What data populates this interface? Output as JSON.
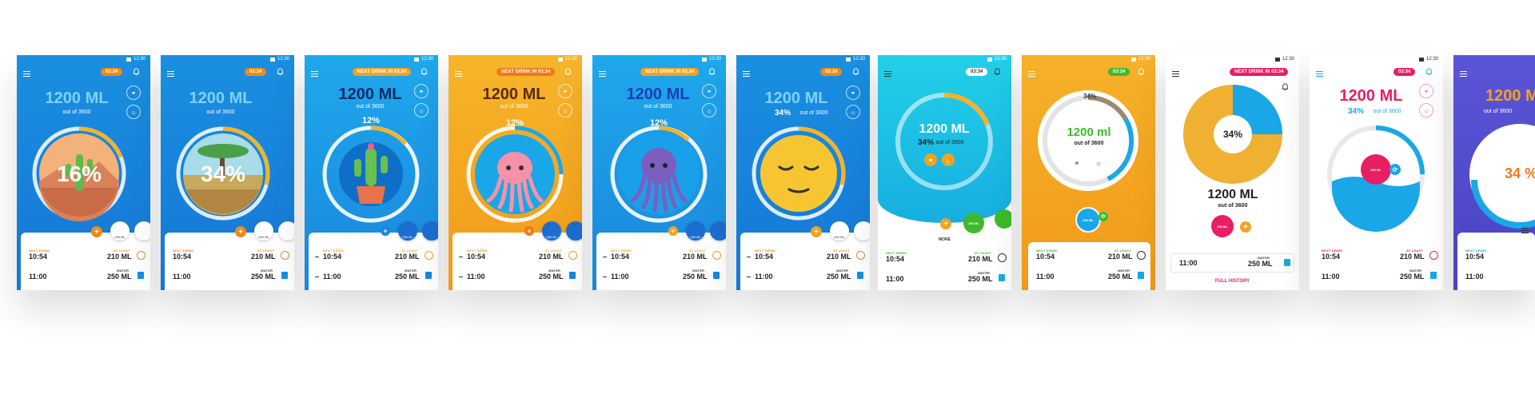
{
  "status": {
    "time": "12:30"
  },
  "common": {
    "amount": "1200 ML",
    "amount_lower": "1200 ml",
    "out_of": "out of 3600",
    "out_of_lower": "out of 3600",
    "next_drink_label": "NEXT DRINK",
    "at_least_label": "AT LEAST",
    "water_label": "WATER",
    "time1": "10:54",
    "time2": "11:00",
    "amt1": "210 ML",
    "amt2": "250 ML",
    "cup_label": "250 ML",
    "more": "MORE"
  },
  "screens": [
    {
      "timer": "03:34",
      "pct": "16%"
    },
    {
      "timer": "03:34",
      "pct": "34%"
    },
    {
      "timer": "NEXT DRINK IN 03:34",
      "pct": "12%"
    },
    {
      "timer": "NEXT DRINK IN 03:34",
      "pct": "12%"
    },
    {
      "timer": "NEXT DRINK IN 03:34",
      "pct": "12%"
    },
    {
      "timer": "03:34",
      "pct": "34%"
    },
    {
      "timer": "03:34",
      "pct": "34%"
    },
    {
      "timer": "03:34",
      "pct": "34%"
    },
    {
      "timer": "NEXT DRINK IN 03:34",
      "pct": "34%",
      "history": "FULL HISTORY"
    },
    {
      "timer": "03:34",
      "pct": "34%"
    },
    {
      "timer": "",
      "pct": "34 %"
    }
  ],
  "colors": {
    "blue": "#1e88e5",
    "teal": "#1eb8e8",
    "orange": "#f4a21e",
    "pink": "#e91e63",
    "green": "#3dba2a",
    "purple": "#5b4fd0",
    "accent_orange": "#ef8a16"
  }
}
